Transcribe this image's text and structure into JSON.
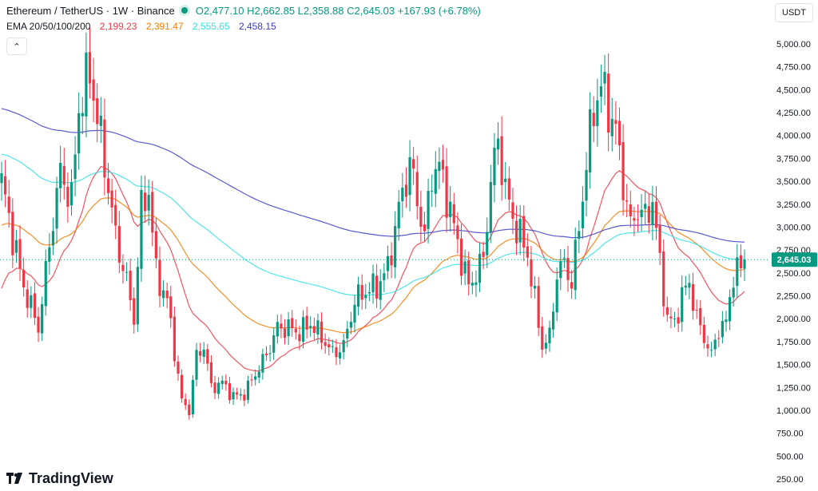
{
  "header": {
    "symbol": "Ethereum / TetherUS · 1W · Binance",
    "ohlc": "O2,477.10 H2,662.85 L2,358.88 C2,645.03 +167.93 (+6.78%)",
    "ema_label": "EMA 20/50/100/200",
    "ema_values": [
      "2,199.23",
      "2,391.47",
      "2,555.65",
      "2,458.15"
    ],
    "currency": "USDT",
    "collapse_icon": "chevron-up-icon"
  },
  "branding": {
    "logo_text": "TradingView"
  },
  "colors": {
    "up": "#089981",
    "down": "#f23645",
    "ema20": "#f23645",
    "ema50": "#f57c00",
    "ema100": "#33e0e8",
    "ema200": "#3c3cc8",
    "price_tag": "#089981",
    "axis_text": "#131722"
  },
  "chart_data": {
    "type": "candlestick",
    "y_axis": {
      "min": 250,
      "max": 5000,
      "position": "right",
      "ticks": [
        "5,000.00",
        "4,750.00",
        "4,500.00",
        "4,250.00",
        "4,000.00",
        "3,750.00",
        "3,500.00",
        "3,250.00",
        "3,000.00",
        "2,750.00",
        "2,500.00",
        "2,250.00",
        "2,000.00",
        "1,750.00",
        "1,500.00",
        "1,250.00",
        "1,000.00",
        "750.00",
        "500.00",
        "250.00"
      ],
      "tick_values": [
        5000,
        4750,
        4500,
        4250,
        4000,
        3750,
        3500,
        3250,
        3000,
        2750,
        2500,
        2250,
        2000,
        1750,
        1500,
        1250,
        1000,
        750,
        500,
        250
      ]
    },
    "last_price": "2,645.03",
    "last_price_value": 2645.03,
    "legend_series": [
      "EMA 20",
      "EMA 50",
      "EMA 100",
      "EMA 200"
    ],
    "anchors": [
      [
        0,
        3500
      ],
      [
        3,
        2900
      ],
      [
        6,
        2350
      ],
      [
        10,
        1900
      ],
      [
        14,
        3100
      ],
      [
        16,
        3600
      ],
      [
        19,
        3300
      ],
      [
        21,
        4300
      ],
      [
        24,
        4700
      ],
      [
        28,
        3700
      ],
      [
        31,
        2900
      ],
      [
        34,
        2400
      ],
      [
        36,
        2000
      ],
      [
        38,
        3200
      ],
      [
        40,
        3400
      ],
      [
        42,
        2500
      ],
      [
        45,
        2200
      ],
      [
        47,
        1650
      ],
      [
        49,
        1100
      ],
      [
        51,
        1000
      ],
      [
        53,
        1600
      ],
      [
        55,
        1700
      ],
      [
        57,
        1250
      ],
      [
        60,
        1300
      ],
      [
        63,
        1150
      ],
      [
        66,
        1180
      ],
      [
        69,
        1400
      ],
      [
        72,
        1600
      ],
      [
        75,
        1900
      ],
      [
        78,
        1900
      ],
      [
        81,
        1850
      ],
      [
        84,
        1950
      ],
      [
        87,
        1800
      ],
      [
        90,
        1620
      ],
      [
        93,
        1700
      ],
      [
        96,
        2200
      ],
      [
        99,
        2300
      ],
      [
        102,
        2350
      ],
      [
        105,
        2550
      ],
      [
        108,
        3200
      ],
      [
        111,
        3700
      ],
      [
        113,
        3300
      ],
      [
        115,
        2900
      ],
      [
        117,
        3600
      ],
      [
        119,
        3650
      ],
      [
        121,
        3350
      ],
      [
        123,
        3000
      ],
      [
        125,
        2650
      ],
      [
        127,
        2350
      ],
      [
        129,
        2500
      ],
      [
        131,
        2650
      ],
      [
        133,
        3500
      ],
      [
        135,
        3950
      ],
      [
        137,
        3400
      ],
      [
        139,
        3100
      ],
      [
        141,
        2900
      ],
      [
        143,
        2700
      ],
      [
        145,
        2200
      ],
      [
        147,
        1700
      ],
      [
        149,
        1800
      ],
      [
        151,
        2500
      ],
      [
        153,
        2600
      ],
      [
        155,
        2400
      ],
      [
        157,
        3000
      ],
      [
        159,
        3700
      ],
      [
        161,
        4300
      ],
      [
        163,
        4550
      ],
      [
        165,
        4300
      ],
      [
        167,
        4050
      ],
      [
        169,
        3500
      ],
      [
        171,
        3000
      ],
      [
        173,
        3200
      ],
      [
        175,
        3100
      ],
      [
        177,
        3300
      ],
      [
        179,
        2600
      ],
      [
        181,
        2000
      ],
      [
        183,
        1950
      ],
      [
        185,
        2250
      ],
      [
        187,
        2400
      ],
      [
        189,
        2000
      ],
      [
        191,
        1800
      ],
      [
        193,
        1600
      ],
      [
        195,
        1900
      ],
      [
        197,
        1950
      ],
      [
        199,
        2500
      ],
      [
        201,
        2550
      ],
      [
        202,
        2645
      ]
    ],
    "bars": 203
  }
}
